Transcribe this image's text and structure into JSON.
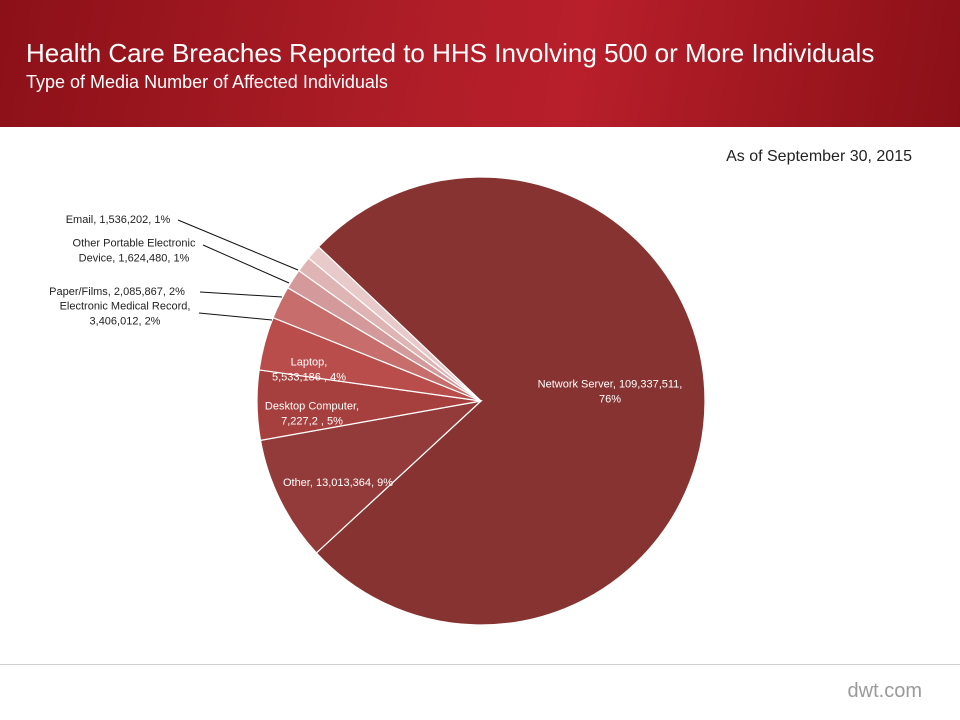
{
  "header": {
    "title": "Health Care Breaches Reported to HHS Involving 500 or More Individuals",
    "subtitle": "Type of Media Number  of Affected Individuals"
  },
  "as_of": "As of September 30, 2015",
  "footer": {
    "brand": "dwt.com"
  },
  "chart_data": {
    "type": "pie",
    "title": "",
    "slices": [
      {
        "name": "Network Server",
        "value": 109337511,
        "percent": 76,
        "color": "#863332",
        "label_lines": [
          "Network Server,  109,337,511,",
          "76%"
        ]
      },
      {
        "name": "Other",
        "value": 13013364,
        "percent": 9,
        "color": "#923b3a",
        "label_lines": [
          "Other,  13,013,364, 9%"
        ]
      },
      {
        "name": "Desktop Computer",
        "value": 7227200,
        "percent": 5,
        "color": "#a6403f",
        "label_lines": [
          "Desktop Computer,",
          "7,227,2 ,  5%"
        ]
      },
      {
        "name": "Laptop",
        "value": 5533186,
        "percent": 4,
        "color": "#b94d4c",
        "label_lines": [
          "Laptop,",
          "5,533,186 , 4%"
        ]
      },
      {
        "name": "Electronic Medical Record",
        "value": 3406012,
        "percent": 2,
        "color": "#c76e6c",
        "label_lines": [
          "Electronic Medical Record,",
          "3,406,012, 2%"
        ]
      },
      {
        "name": "Paper/Films",
        "value": 2085867,
        "percent": 2,
        "color": "#d4999a",
        "label_lines": [
          "Paper/Films,  2,085,867, 2%"
        ]
      },
      {
        "name": "Other Portable Electronic Device",
        "value": 1624480,
        "percent": 1,
        "color": "#dfb4b4",
        "label_lines": [
          "Other  Portable Electronic",
          "Device,  1,624,480, 1%"
        ]
      },
      {
        "name": "Email",
        "value": 1536202,
        "percent": 1,
        "color": "#e8cacb",
        "label_lines": [
          "Email,  1,536,202, 1%"
        ]
      }
    ]
  }
}
